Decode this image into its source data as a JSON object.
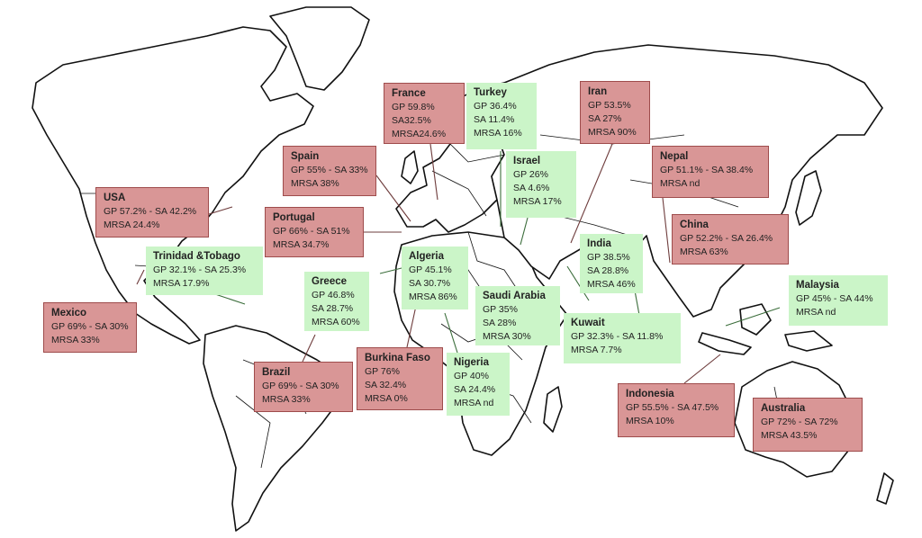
{
  "colors": {
    "high": "#d99696",
    "low": "#cbf5c8",
    "high_border": "#9e4c4c"
  },
  "countries": {
    "france": {
      "name": "France",
      "lines": [
        "GP 59.8%",
        "SA32.5%",
        "MRSA24.6%"
      ],
      "tone": "high"
    },
    "turkey": {
      "name": "Turkey",
      "lines": [
        "GP 36.4%",
        "SA 11.4%",
        "MRSA 16%"
      ],
      "tone": "low"
    },
    "iran": {
      "name": "Iran",
      "lines": [
        "GP 53.5%",
        "SA 27%",
        "MRSA 90%"
      ],
      "tone": "high"
    },
    "spain": {
      "name": "Spain",
      "lines": [
        "GP 55% - SA 33%",
        "MRSA 38%"
      ],
      "tone": "high"
    },
    "israel": {
      "name": "Israel",
      "lines": [
        "GP 26%",
        "SA 4.6%",
        "MRSA 17%"
      ],
      "tone": "low"
    },
    "nepal": {
      "name": "Nepal",
      "lines": [
        "GP 51.1% - SA 38.4%",
        "MRSA nd"
      ],
      "tone": "high"
    },
    "usa": {
      "name": "USA",
      "lines": [
        "GP 57.2% - SA 42.2%",
        "MRSA 24.4%"
      ],
      "tone": "high"
    },
    "portugal": {
      "name": "Portugal",
      "lines": [
        "GP 66% - SA 51%",
        "MRSA 34.7%"
      ],
      "tone": "high"
    },
    "china": {
      "name": "China",
      "lines": [
        "GP 52.2% - SA 26.4%",
        "MRSA 63%"
      ],
      "tone": "high"
    },
    "trinidad": {
      "name": "Trinidad &Tobago",
      "lines": [
        "GP 32.1% - SA 25.3%",
        "MRSA 17.9%"
      ],
      "tone": "low"
    },
    "algeria": {
      "name": "Algeria",
      "lines": [
        "GP 45.1%",
        "SA 30.7%",
        "MRSA 86%"
      ],
      "tone": "low"
    },
    "india": {
      "name": "India",
      "lines": [
        "GP 38.5%",
        "SA 28.8%",
        "MRSA 46%"
      ],
      "tone": "low"
    },
    "greece": {
      "name": "Greece",
      "lines": [
        "GP 46.8%",
        "SA 28.7%",
        "MRSA 60%"
      ],
      "tone": "low"
    },
    "malaysia": {
      "name": "Malaysia",
      "lines": [
        "GP 45% - SA 44%",
        "MRSA nd"
      ],
      "tone": "low"
    },
    "saudi": {
      "name": "Saudi Arabia",
      "lines": [
        "GP 35%",
        "SA 28%",
        "MRSA 30%"
      ],
      "tone": "low"
    },
    "mexico": {
      "name": "Mexico",
      "lines": [
        "GP 69% - SA 30%",
        "MRSA 33%"
      ],
      "tone": "high"
    },
    "kuwait": {
      "name": "Kuwait",
      "lines": [
        "GP 32.3% - SA 11.8%",
        "MRSA 7.7%"
      ],
      "tone": "low"
    },
    "burkina": {
      "name": "Burkina Faso",
      "lines": [
        "GP 76%",
        "SA 32.4%",
        "MRSA 0%"
      ],
      "tone": "high"
    },
    "brazil": {
      "name": "Brazil",
      "lines": [
        "GP 69% - SA 30%",
        "MRSA 33%"
      ],
      "tone": "high"
    },
    "nigeria": {
      "name": "Nigeria",
      "lines": [
        "GP 40%",
        "SA 24.4%",
        "MRSA nd"
      ],
      "tone": "low"
    },
    "indonesia": {
      "name": "Indonesia",
      "lines": [
        "GP 55.5% - SA 47.5%",
        "MRSA 10%"
      ],
      "tone": "high"
    },
    "australia": {
      "name": "Australia",
      "lines": [
        "GP 72% - SA 72%",
        "MRSA 43.5%"
      ],
      "tone": "high"
    }
  }
}
